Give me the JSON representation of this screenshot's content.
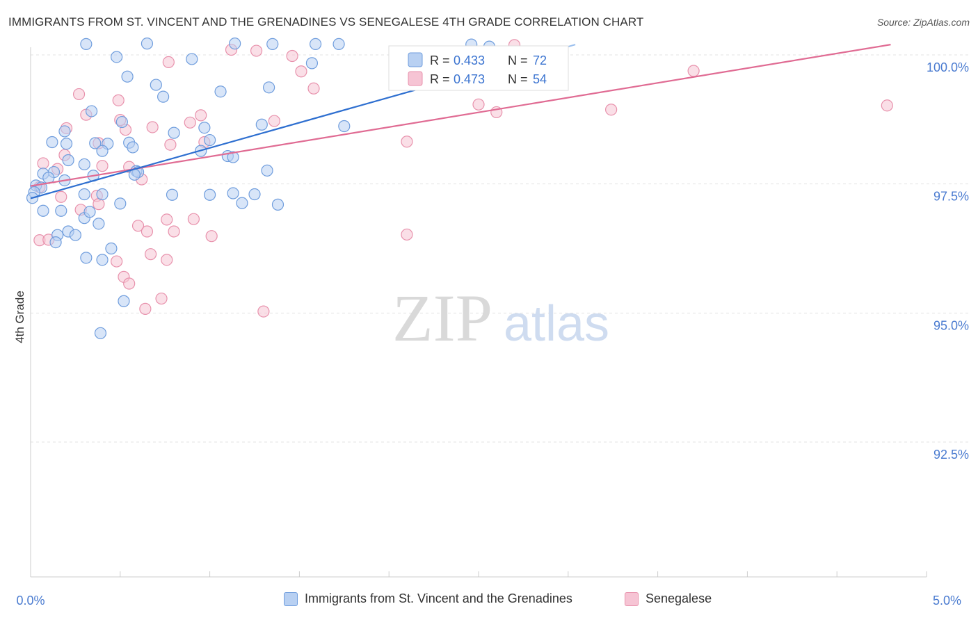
{
  "title": "IMMIGRANTS FROM ST. VINCENT AND THE GRENADINES VS SENEGALESE 4TH GRADE CORRELATION CHART",
  "source": "Source: ZipAtlas.com",
  "watermark": {
    "zip": "ZIP",
    "atlas": "atlas"
  },
  "colors": {
    "blue": "#6f9ddd",
    "blue_fill": "#b8d0f2",
    "blue_line": "#2e6fd0",
    "pink": "#e891ac",
    "pink_fill": "#f6c4d4",
    "pink_line": "#e06b93",
    "tick_label": "#4a7bd0"
  },
  "legend_top": [
    {
      "r_label": "R = ",
      "r_value": "0.433",
      "n_label": "N = ",
      "n_value": "72"
    },
    {
      "r_label": "R = ",
      "r_value": "0.473",
      "n_label": "N = ",
      "n_value": "54"
    }
  ],
  "legend_bottom": [
    {
      "label": "Immigrants from St. Vincent and the Grenadines"
    },
    {
      "label": "Senegalese"
    }
  ],
  "chart_data": {
    "type": "scatter",
    "title": "IMMIGRANTS FROM ST. VINCENT AND THE GRENADINES VS SENEGALESE 4TH GRADE CORRELATION CHART",
    "xlabel": "",
    "ylabel": "4th Grade",
    "xlim": [
      0.0,
      5.0
    ],
    "ylim": [
      90.2,
      100.3
    ],
    "x_tick_labels": [
      {
        "value": 0.0,
        "label": "0.0%"
      },
      {
        "value": 5.0,
        "label": "5.0%"
      }
    ],
    "y_ticks": [
      {
        "value": 100.0,
        "label": "100.0%"
      },
      {
        "value": 97.5,
        "label": "97.5%"
      },
      {
        "value": 95.0,
        "label": "95.0%"
      },
      {
        "value": 92.5,
        "label": "92.5%"
      }
    ],
    "grid": true,
    "legend_position": "top-center",
    "series": [
      {
        "name": "Immigrants from St. Vincent and the Grenadines",
        "color": "blue",
        "trendline": {
          "x": [
            0.0,
            3.04
          ],
          "y": [
            97.22,
            100.2
          ]
        },
        "trendline_dashed": {
          "x": [
            2.75,
            3.04
          ],
          "y": [
            99.91,
            100.2
          ]
        },
        "points": [
          [
            0.31,
            100.21
          ],
          [
            0.65,
            100.22
          ],
          [
            1.14,
            100.22
          ],
          [
            1.35,
            100.21
          ],
          [
            1.59,
            100.21
          ],
          [
            1.72,
            100.21
          ],
          [
            2.46,
            100.2
          ],
          [
            2.56,
            100.16
          ],
          [
            0.48,
            99.96
          ],
          [
            0.9,
            99.92
          ],
          [
            1.57,
            99.84
          ],
          [
            0.54,
            99.58
          ],
          [
            0.7,
            99.42
          ],
          [
            1.06,
            99.29
          ],
          [
            1.33,
            99.37
          ],
          [
            0.74,
            99.19
          ],
          [
            0.34,
            98.91
          ],
          [
            0.51,
            98.7
          ],
          [
            0.8,
            98.49
          ],
          [
            0.97,
            98.59
          ],
          [
            1.29,
            98.65
          ],
          [
            1.75,
            98.62
          ],
          [
            0.19,
            98.52
          ],
          [
            0.12,
            98.31
          ],
          [
            0.2,
            98.28
          ],
          [
            0.36,
            98.29
          ],
          [
            0.43,
            98.28
          ],
          [
            0.55,
            98.3
          ],
          [
            0.57,
            98.21
          ],
          [
            0.4,
            98.14
          ],
          [
            1.0,
            98.35
          ],
          [
            0.95,
            98.14
          ],
          [
            1.1,
            98.04
          ],
          [
            1.13,
            98.02
          ],
          [
            0.21,
            97.96
          ],
          [
            0.3,
            97.88
          ],
          [
            0.13,
            97.73
          ],
          [
            0.59,
            97.75
          ],
          [
            0.6,
            97.73
          ],
          [
            0.35,
            97.66
          ],
          [
            0.58,
            97.68
          ],
          [
            0.19,
            97.57
          ],
          [
            0.03,
            97.47
          ],
          [
            1.32,
            97.76
          ],
          [
            0.07,
            97.7
          ],
          [
            0.1,
            97.62
          ],
          [
            0.06,
            97.43
          ],
          [
            0.3,
            97.3
          ],
          [
            0.4,
            97.3
          ],
          [
            0.79,
            97.29
          ],
          [
            1.0,
            97.29
          ],
          [
            1.13,
            97.32
          ],
          [
            1.25,
            97.3
          ],
          [
            0.5,
            97.12
          ],
          [
            1.18,
            97.13
          ],
          [
            1.38,
            97.1
          ],
          [
            0.02,
            97.34
          ],
          [
            0.01,
            97.23
          ],
          [
            0.07,
            96.98
          ],
          [
            0.17,
            96.98
          ],
          [
            0.3,
            96.84
          ],
          [
            0.33,
            96.96
          ],
          [
            0.38,
            96.73
          ],
          [
            0.45,
            96.25
          ],
          [
            0.4,
            96.03
          ],
          [
            0.31,
            96.07
          ],
          [
            0.52,
            95.23
          ],
          [
            0.15,
            96.51
          ],
          [
            0.21,
            96.58
          ],
          [
            0.25,
            96.51
          ],
          [
            0.14,
            96.37
          ],
          [
            0.39,
            94.61
          ]
        ],
        "sizes": [
          8,
          8,
          8,
          8,
          8,
          8,
          8,
          8,
          8,
          8,
          8,
          8,
          8,
          8,
          8,
          8,
          8,
          8,
          8,
          8,
          8,
          8,
          8,
          8,
          8,
          8,
          8,
          8,
          8,
          8,
          8,
          8,
          8,
          8,
          8,
          8,
          8,
          8,
          8,
          8,
          8,
          8,
          8,
          8,
          8,
          8,
          8,
          8,
          8,
          8,
          8,
          8,
          8,
          8,
          8,
          8,
          8,
          8,
          8,
          8,
          8,
          8,
          8,
          8,
          8,
          8,
          8,
          8,
          8,
          8,
          8,
          8
        ]
      },
      {
        "name": "Senegalese",
        "color": "pink",
        "trendline": {
          "x": [
            0.0,
            4.8
          ],
          "y": [
            97.46,
            100.2
          ]
        },
        "points": [
          [
            1.12,
            100.1
          ],
          [
            1.26,
            100.08
          ],
          [
            2.7,
            100.19
          ],
          [
            1.46,
            99.98
          ],
          [
            0.77,
            99.86
          ],
          [
            1.51,
            99.68
          ],
          [
            3.7,
            99.69
          ],
          [
            1.58,
            99.35
          ],
          [
            0.27,
            99.24
          ],
          [
            0.49,
            99.12
          ],
          [
            0.95,
            98.83
          ],
          [
            2.5,
            99.04
          ],
          [
            2.6,
            98.89
          ],
          [
            3.24,
            98.94
          ],
          [
            4.78,
            99.02
          ],
          [
            1.36,
            98.72
          ],
          [
            0.31,
            98.84
          ],
          [
            0.5,
            98.74
          ],
          [
            0.53,
            98.55
          ],
          [
            0.2,
            98.58
          ],
          [
            0.68,
            98.6
          ],
          [
            0.89,
            98.69
          ],
          [
            0.78,
            98.26
          ],
          [
            0.97,
            98.31
          ],
          [
            0.38,
            98.29
          ],
          [
            2.1,
            98.32
          ],
          [
            0.19,
            98.06
          ],
          [
            0.07,
            97.9
          ],
          [
            0.4,
            97.85
          ],
          [
            0.55,
            97.83
          ],
          [
            0.15,
            97.79
          ],
          [
            0.62,
            97.59
          ],
          [
            0.05,
            97.44
          ],
          [
            0.17,
            97.25
          ],
          [
            0.37,
            97.27
          ],
          [
            0.28,
            97.0
          ],
          [
            0.38,
            97.11
          ],
          [
            0.91,
            96.82
          ],
          [
            0.76,
            96.81
          ],
          [
            0.6,
            96.69
          ],
          [
            0.8,
            96.58
          ],
          [
            0.65,
            96.58
          ],
          [
            2.1,
            96.52
          ],
          [
            1.01,
            96.49
          ],
          [
            0.05,
            96.41
          ],
          [
            0.1,
            96.42
          ],
          [
            0.67,
            96.14
          ],
          [
            0.76,
            96.03
          ],
          [
            0.48,
            96.0
          ],
          [
            0.52,
            95.7
          ],
          [
            0.55,
            95.57
          ],
          [
            0.73,
            95.28
          ],
          [
            0.64,
            95.08
          ],
          [
            1.3,
            95.03
          ]
        ],
        "sizes": [
          8,
          8,
          8,
          8,
          8,
          8,
          8,
          8,
          8,
          8,
          8,
          8,
          8,
          8,
          8,
          8,
          8,
          8,
          8,
          8,
          8,
          8,
          8,
          8,
          8,
          8,
          8,
          8,
          8,
          8,
          8,
          8,
          8,
          8,
          8,
          8,
          8,
          8,
          8,
          8,
          8,
          8,
          8,
          8,
          8,
          8,
          8,
          8,
          8,
          8,
          8,
          8,
          8,
          8
        ]
      }
    ],
    "r_values": [
      0.433,
      0.473
    ],
    "n_values": [
      72,
      54
    ]
  }
}
